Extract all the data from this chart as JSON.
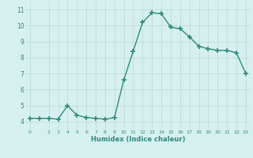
{
  "x": [
    0,
    1,
    2,
    3,
    4,
    5,
    6,
    7,
    8,
    9,
    10,
    11,
    12,
    13,
    14,
    15,
    16,
    17,
    18,
    19,
    20,
    21,
    22,
    23
  ],
  "y": [
    4.2,
    4.2,
    4.2,
    4.15,
    5.0,
    4.4,
    4.25,
    4.2,
    4.15,
    4.25,
    6.6,
    8.4,
    10.2,
    10.8,
    10.75,
    9.9,
    9.8,
    9.3,
    8.7,
    8.55,
    8.45,
    8.45,
    8.3,
    7.0
  ],
  "xlabel": "Humidex (Indice chaleur)",
  "ylim": [
    3.5,
    11.5
  ],
  "xlim": [
    -0.5,
    23.5
  ],
  "yticks": [
    4,
    5,
    6,
    7,
    8,
    9,
    10,
    11
  ],
  "xticks": [
    0,
    2,
    3,
    4,
    5,
    6,
    7,
    8,
    9,
    10,
    11,
    12,
    13,
    14,
    15,
    16,
    17,
    18,
    19,
    20,
    21,
    22,
    23
  ],
  "line_color": "#2e8b7a",
  "marker_color": "#2e8b7a",
  "bg_color": "#d6f0ef",
  "grid_color": "#b8d8d5",
  "label_color": "#2e8b7a"
}
